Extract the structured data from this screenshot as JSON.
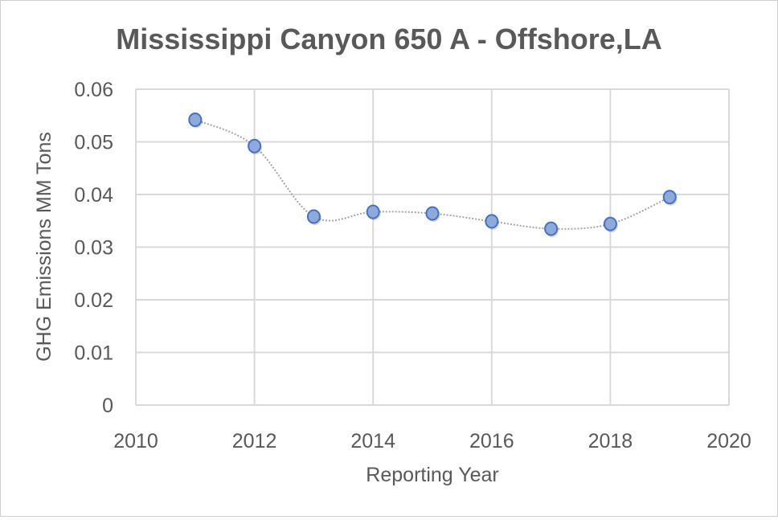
{
  "chart_data": {
    "type": "scatter",
    "title": "Mississippi Canyon 650 A - Offshore,LA",
    "xlabel": "Reporting Year",
    "ylabel": "GHG Emissions MM Tons",
    "xlim": [
      2010,
      2020
    ],
    "ylim": [
      0,
      0.06
    ],
    "xticks": [
      "2010",
      "2012",
      "2014",
      "2016",
      "2018",
      "2020"
    ],
    "yticks": [
      "0",
      "0.01",
      "0.02",
      "0.03",
      "0.04",
      "0.05",
      "0.06"
    ],
    "grid": true,
    "line": "smoothed dotted",
    "series": [
      {
        "x": [
          2011,
          2012,
          2013,
          2014,
          2015,
          2016,
          2017,
          2018,
          2019
        ],
        "y": [
          0.0542,
          0.0492,
          0.0358,
          0.0367,
          0.0364,
          0.0349,
          0.0335,
          0.0344,
          0.0395
        ]
      }
    ],
    "colors": {
      "marker_fill": "#8eaadb",
      "marker_stroke": "#4472c4",
      "line": "#a6a6a6",
      "grid": "#d9d9d9",
      "text": "#595959"
    }
  }
}
